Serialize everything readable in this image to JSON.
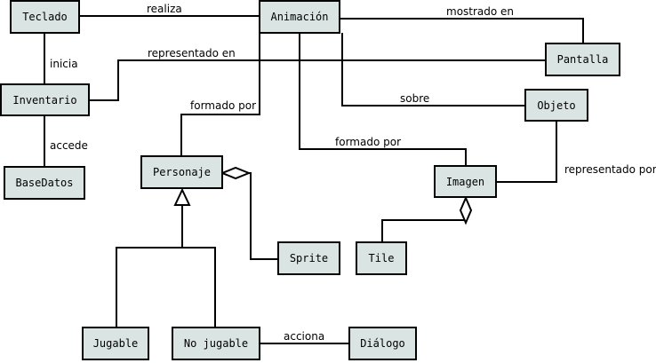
{
  "nodes": {
    "teclado": "Teclado",
    "animacion": "Animación",
    "pantalla": "Pantalla",
    "inventario": "Inventario",
    "objeto": "Objeto",
    "basedatos": "BaseDatos",
    "personaje": "Personaje",
    "imagen": "Imagen",
    "sprite": "Sprite",
    "tile": "Tile",
    "jugable": "Jugable",
    "no_jugable": "No jugable",
    "dialogo": "Diálogo"
  },
  "edges": {
    "realiza": "realiza",
    "mostrado_en": "mostrado en",
    "inicia": "inicia",
    "representado_en_1": "representado en",
    "formado_por_1": "formado por",
    "sobre": "sobre",
    "accede": "accede",
    "formado_por_2": "formado por",
    "representado_por": "representado por",
    "acciona": "acciona"
  }
}
